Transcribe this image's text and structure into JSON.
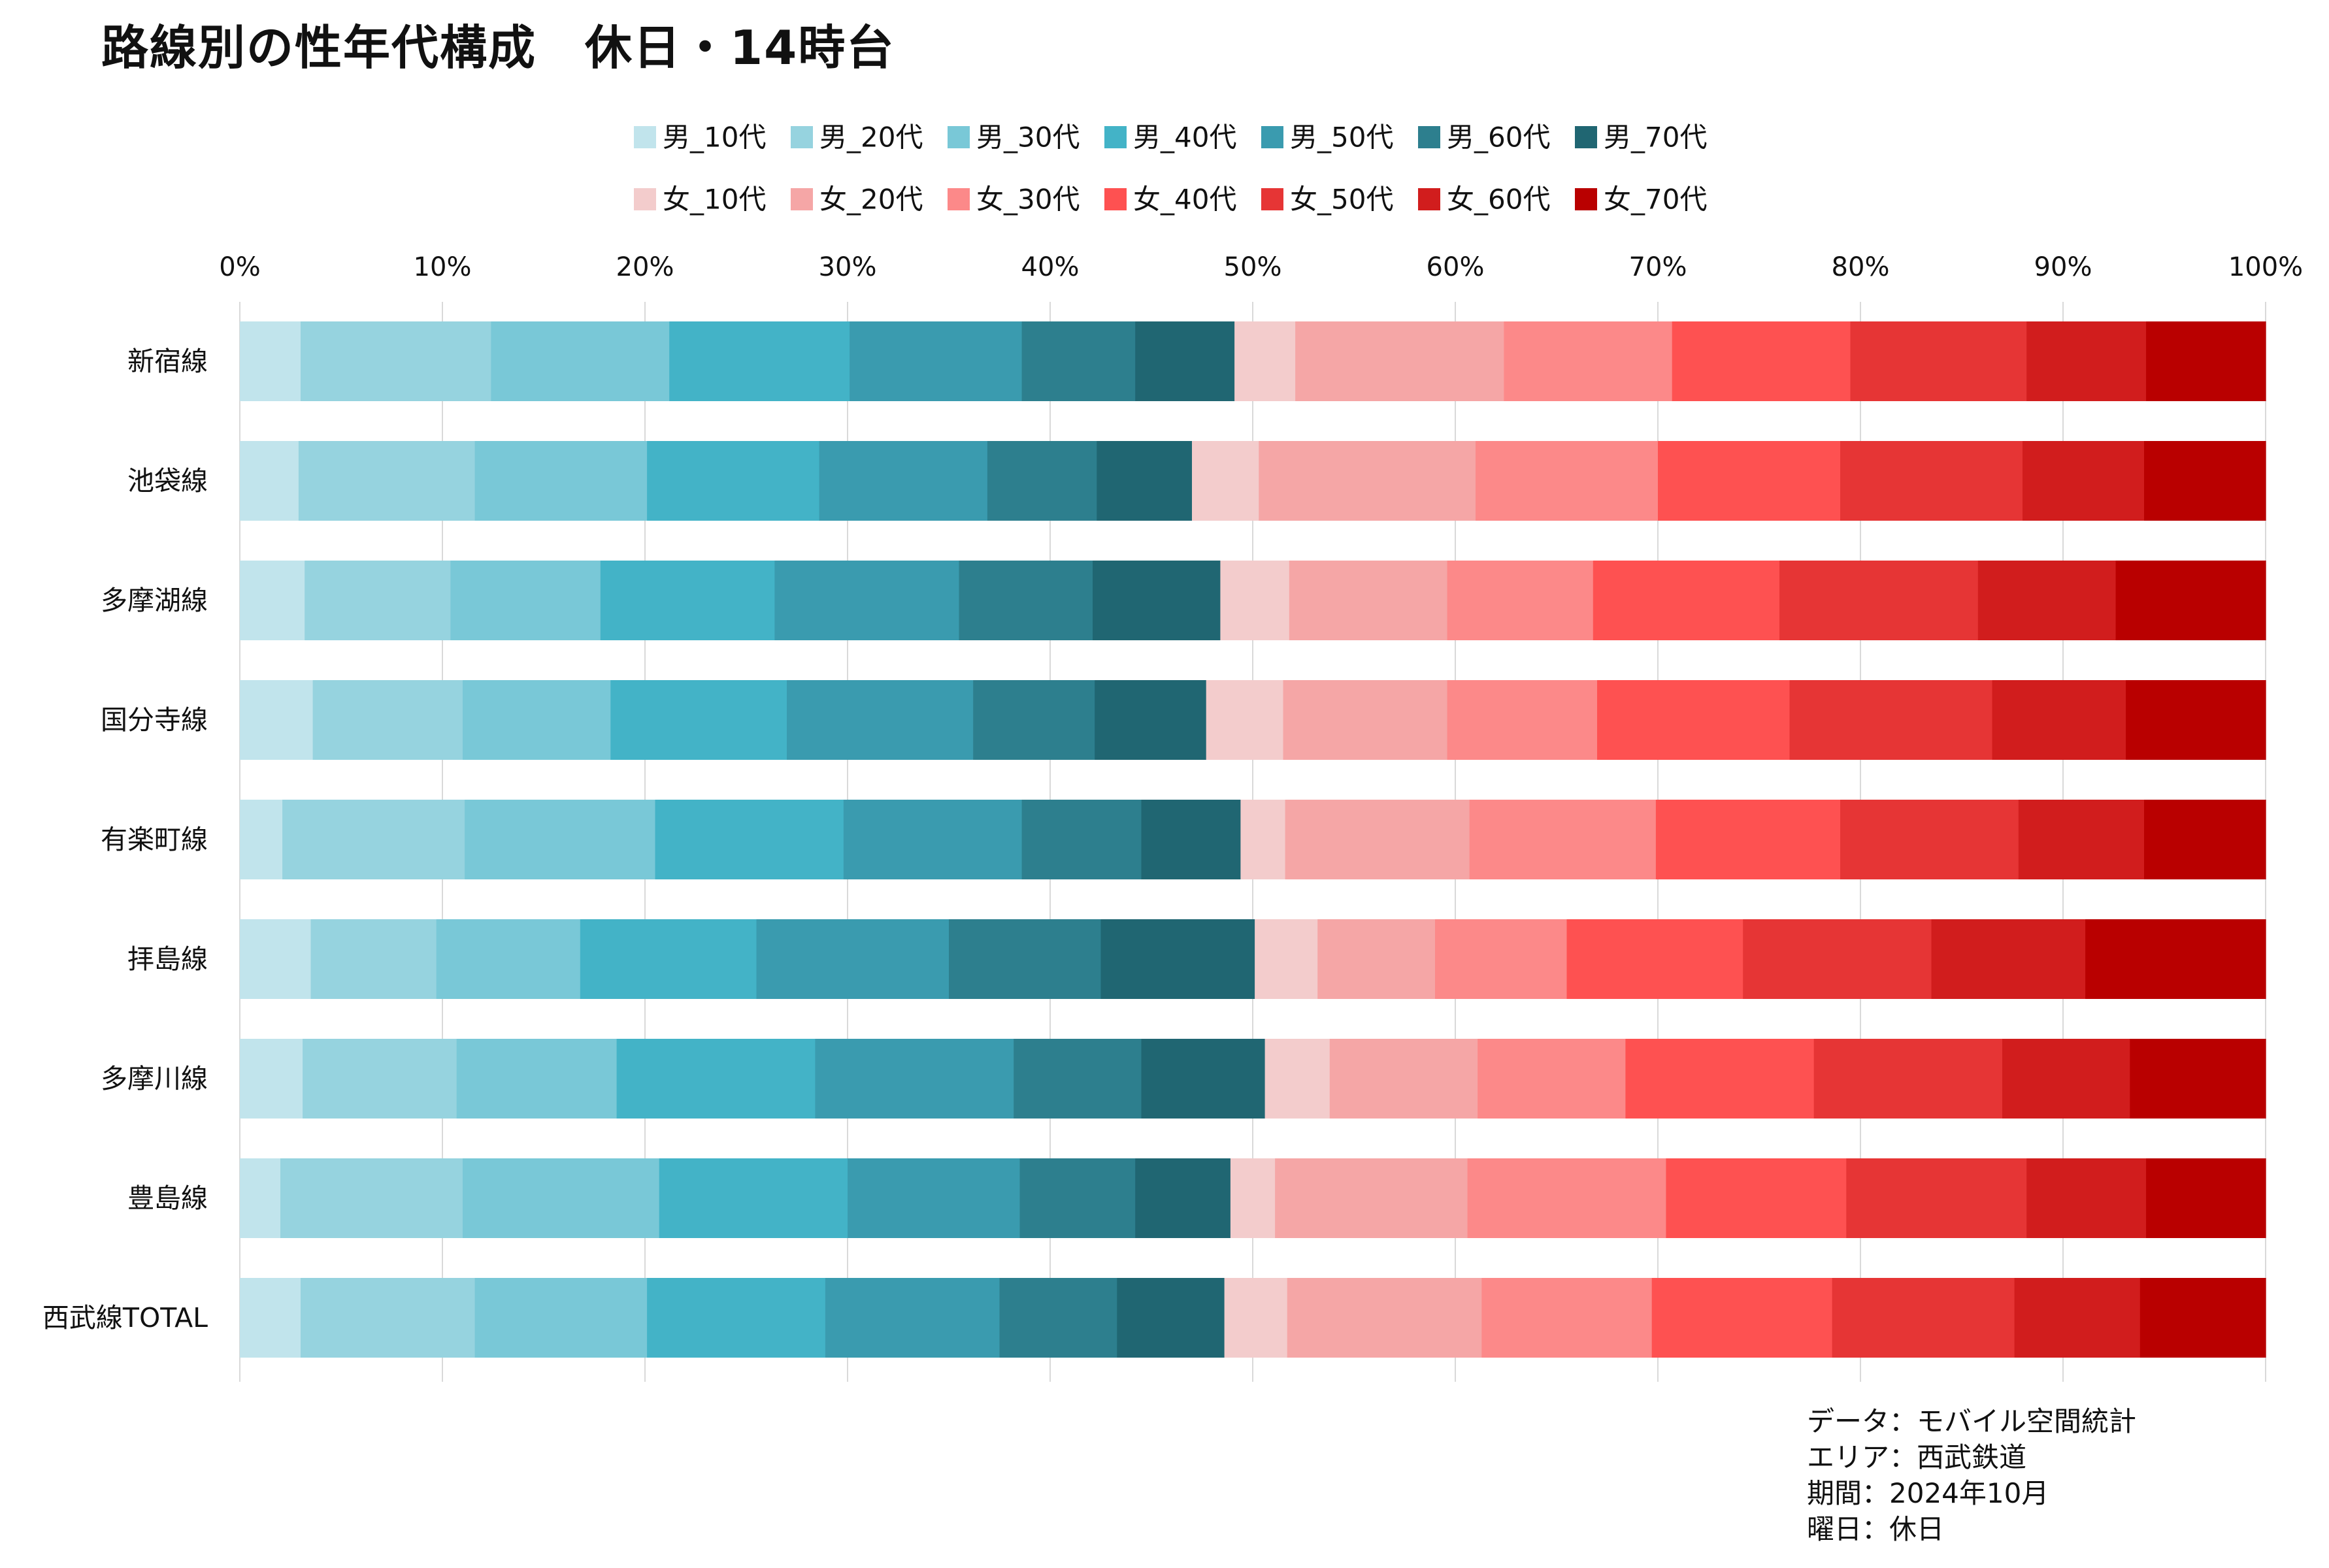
{
  "chart_data": {
    "type": "bar",
    "orientation": "horizontal",
    "stacked": true,
    "normalized": "percent",
    "title": "路線別の性年代構成　休日・14時台",
    "xlabel": "",
    "ylabel": "",
    "xlim": [
      0,
      100
    ],
    "x_ticks": [
      "0%",
      "10%",
      "20%",
      "30%",
      "40%",
      "50%",
      "60%",
      "70%",
      "80%",
      "90%",
      "100%"
    ],
    "grid": "vertical",
    "legend_position": "top",
    "categories": [
      "新宿線",
      "池袋線",
      "多摩湖線",
      "国分寺線",
      "有楽町線",
      "拝島線",
      "多摩川線",
      "豊島線",
      "西武線TOTAL"
    ],
    "series": [
      {
        "name": "男_10代",
        "color": "#c1e4ec",
        "values": [
          3.0,
          2.9,
          3.2,
          3.6,
          2.1,
          3.5,
          3.1,
          2.0,
          3.0
        ]
      },
      {
        "name": "男_20代",
        "color": "#96d3df",
        "values": [
          9.4,
          8.7,
          7.2,
          7.4,
          9.0,
          6.2,
          7.6,
          9.0,
          8.6
        ]
      },
      {
        "name": "男_30代",
        "color": "#79c8d7",
        "values": [
          8.8,
          8.5,
          7.4,
          7.3,
          9.4,
          7.1,
          7.9,
          9.7,
          8.5
        ]
      },
      {
        "name": "男_40代",
        "color": "#43b3c7",
        "values": [
          8.9,
          8.5,
          8.6,
          8.7,
          9.3,
          8.7,
          9.8,
          9.3,
          8.8
        ]
      },
      {
        "name": "男_50代",
        "color": "#3a9baf",
        "values": [
          8.5,
          8.3,
          9.1,
          9.2,
          8.8,
          9.5,
          9.8,
          8.5,
          8.6
        ]
      },
      {
        "name": "男_60代",
        "color": "#2d7f8e",
        "values": [
          5.6,
          5.4,
          6.6,
          6.0,
          5.9,
          7.5,
          6.3,
          5.7,
          5.8
        ]
      },
      {
        "name": "男_70代",
        "color": "#206672",
        "values": [
          4.9,
          4.7,
          6.3,
          5.5,
          4.9,
          7.6,
          6.1,
          4.7,
          5.3
        ]
      },
      {
        "name": "女_10代",
        "color": "#f3cccc",
        "values": [
          3.0,
          3.3,
          3.4,
          3.8,
          2.2,
          3.1,
          3.2,
          2.2,
          3.1
        ]
      },
      {
        "name": "女_20代",
        "color": "#f5a6a6",
        "values": [
          10.3,
          10.7,
          7.8,
          8.1,
          9.1,
          5.8,
          7.3,
          9.5,
          9.6
        ]
      },
      {
        "name": "女_30代",
        "color": "#fc8989",
        "values": [
          8.3,
          9.0,
          7.2,
          7.4,
          9.2,
          6.5,
          7.3,
          9.8,
          8.4
        ]
      },
      {
        "name": "女_40代",
        "color": "#fe5151",
        "values": [
          8.8,
          9.0,
          9.2,
          9.5,
          9.1,
          8.7,
          9.3,
          8.9,
          8.9
        ]
      },
      {
        "name": "女_50代",
        "color": "#e63535",
        "values": [
          8.7,
          9.0,
          9.8,
          10.0,
          8.8,
          9.3,
          9.3,
          8.9,
          9.0
        ]
      },
      {
        "name": "女_60代",
        "color": "#d11d1d",
        "values": [
          5.9,
          6.0,
          6.8,
          6.6,
          6.2,
          7.6,
          6.3,
          5.9,
          6.2
        ]
      },
      {
        "name": "女_70代",
        "color": "#b90000",
        "values": [
          5.9,
          6.0,
          7.4,
          6.9,
          6.0,
          8.9,
          6.7,
          5.9,
          6.2
        ]
      }
    ],
    "notes": [
      "データ：モバイル空間統計",
      "エリア：西武鉄道",
      "期間：2024年10月",
      "曜日：休日"
    ]
  }
}
